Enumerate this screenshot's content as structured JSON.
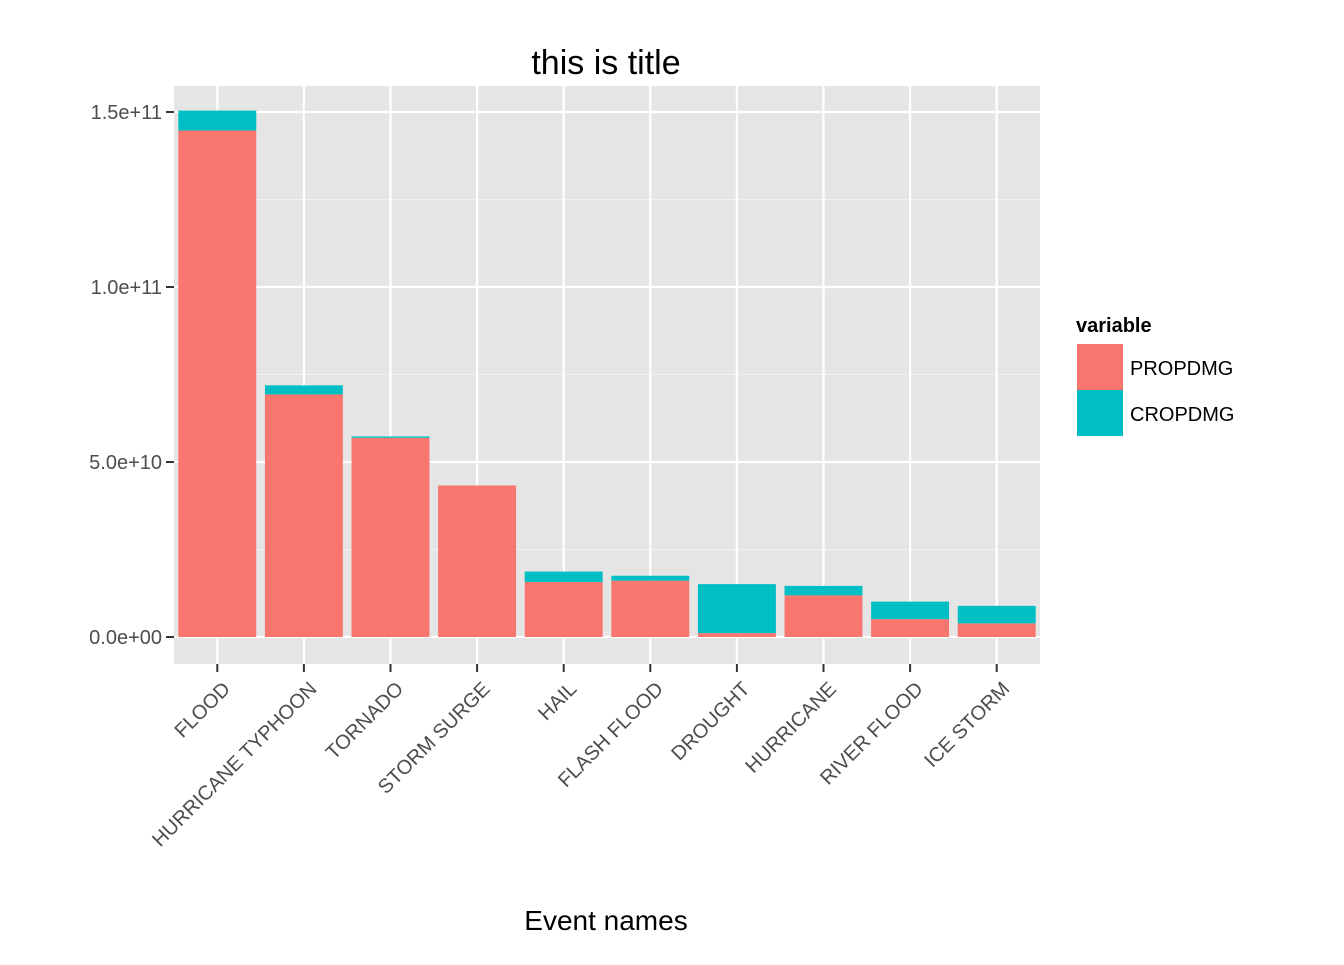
{
  "chart_data": {
    "type": "bar",
    "stacked": true,
    "title": "this is title",
    "xlabel": "Event names",
    "ylabel": "",
    "ylim": [
      0,
      150000000000
    ],
    "y_ticks": [
      0,
      50000000000,
      100000000000,
      150000000000
    ],
    "y_tick_labels": [
      "0.0e+00",
      "5.0e+10",
      "1.0e+11",
      "1.5e+11"
    ],
    "categories": [
      "FLOOD",
      "HURRICANE TYPHOON",
      "TORNADO",
      "STORM SURGE",
      "HAIL",
      "FLASH FLOOD",
      "DROUGHT",
      "HURRICANE",
      "RIVER FLOOD",
      "ICE STORM"
    ],
    "series": [
      {
        "name": "PROPDMG",
        "color": "#F8766D",
        "values": [
          144700000000,
          69300000000,
          56900000000,
          43300000000,
          15700000000,
          16100000000,
          1100000000,
          11900000000,
          5100000000,
          3900000000
        ]
      },
      {
        "name": "CROPDMG",
        "color": "#00BFC4",
        "values": [
          5700000000,
          2600000000,
          400000000,
          0,
          3000000000,
          1400000000,
          14000000000,
          2700000000,
          5000000000,
          5000000000
        ]
      }
    ],
    "legend": {
      "title": "variable",
      "placement": "right",
      "items": [
        "PROPDMG",
        "CROPDMG"
      ]
    },
    "grid": true,
    "panel_background": "#E5E5E5",
    "grid_color": "#FFFFFF"
  }
}
